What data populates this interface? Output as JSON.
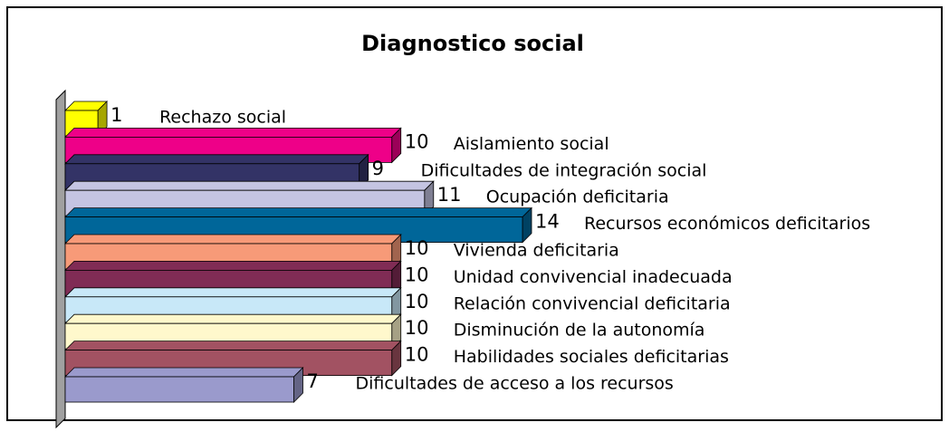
{
  "chart_data": {
    "type": "bar",
    "orientation": "horizontal",
    "title": "Diagnostico social",
    "categories": [
      "Rechazo social",
      "Aislamiento social",
      "Dificultades de integración social",
      "Ocupación deficitaria",
      "Recursos económicos deficitarios",
      "Vivienda deficitaria",
      "Unidad convivencial inadecuada",
      "Relación convivencial deficitaria",
      "Disminución de la autonomía",
      "Habilidades sociales deficitarias",
      "Dificultades de acceso a los recursos"
    ],
    "values": [
      1,
      10,
      9,
      11,
      14,
      10,
      10,
      10,
      10,
      10,
      7
    ],
    "colors": [
      "#ffff00",
      "#ee0088",
      "#333366",
      "#c4c4e2",
      "#006699",
      "#f79a78",
      "#802c55",
      "#c8e8f8",
      "#fff8cc",
      "#a25262",
      "#9a9acc"
    ],
    "xlim": [
      0,
      14
    ]
  }
}
